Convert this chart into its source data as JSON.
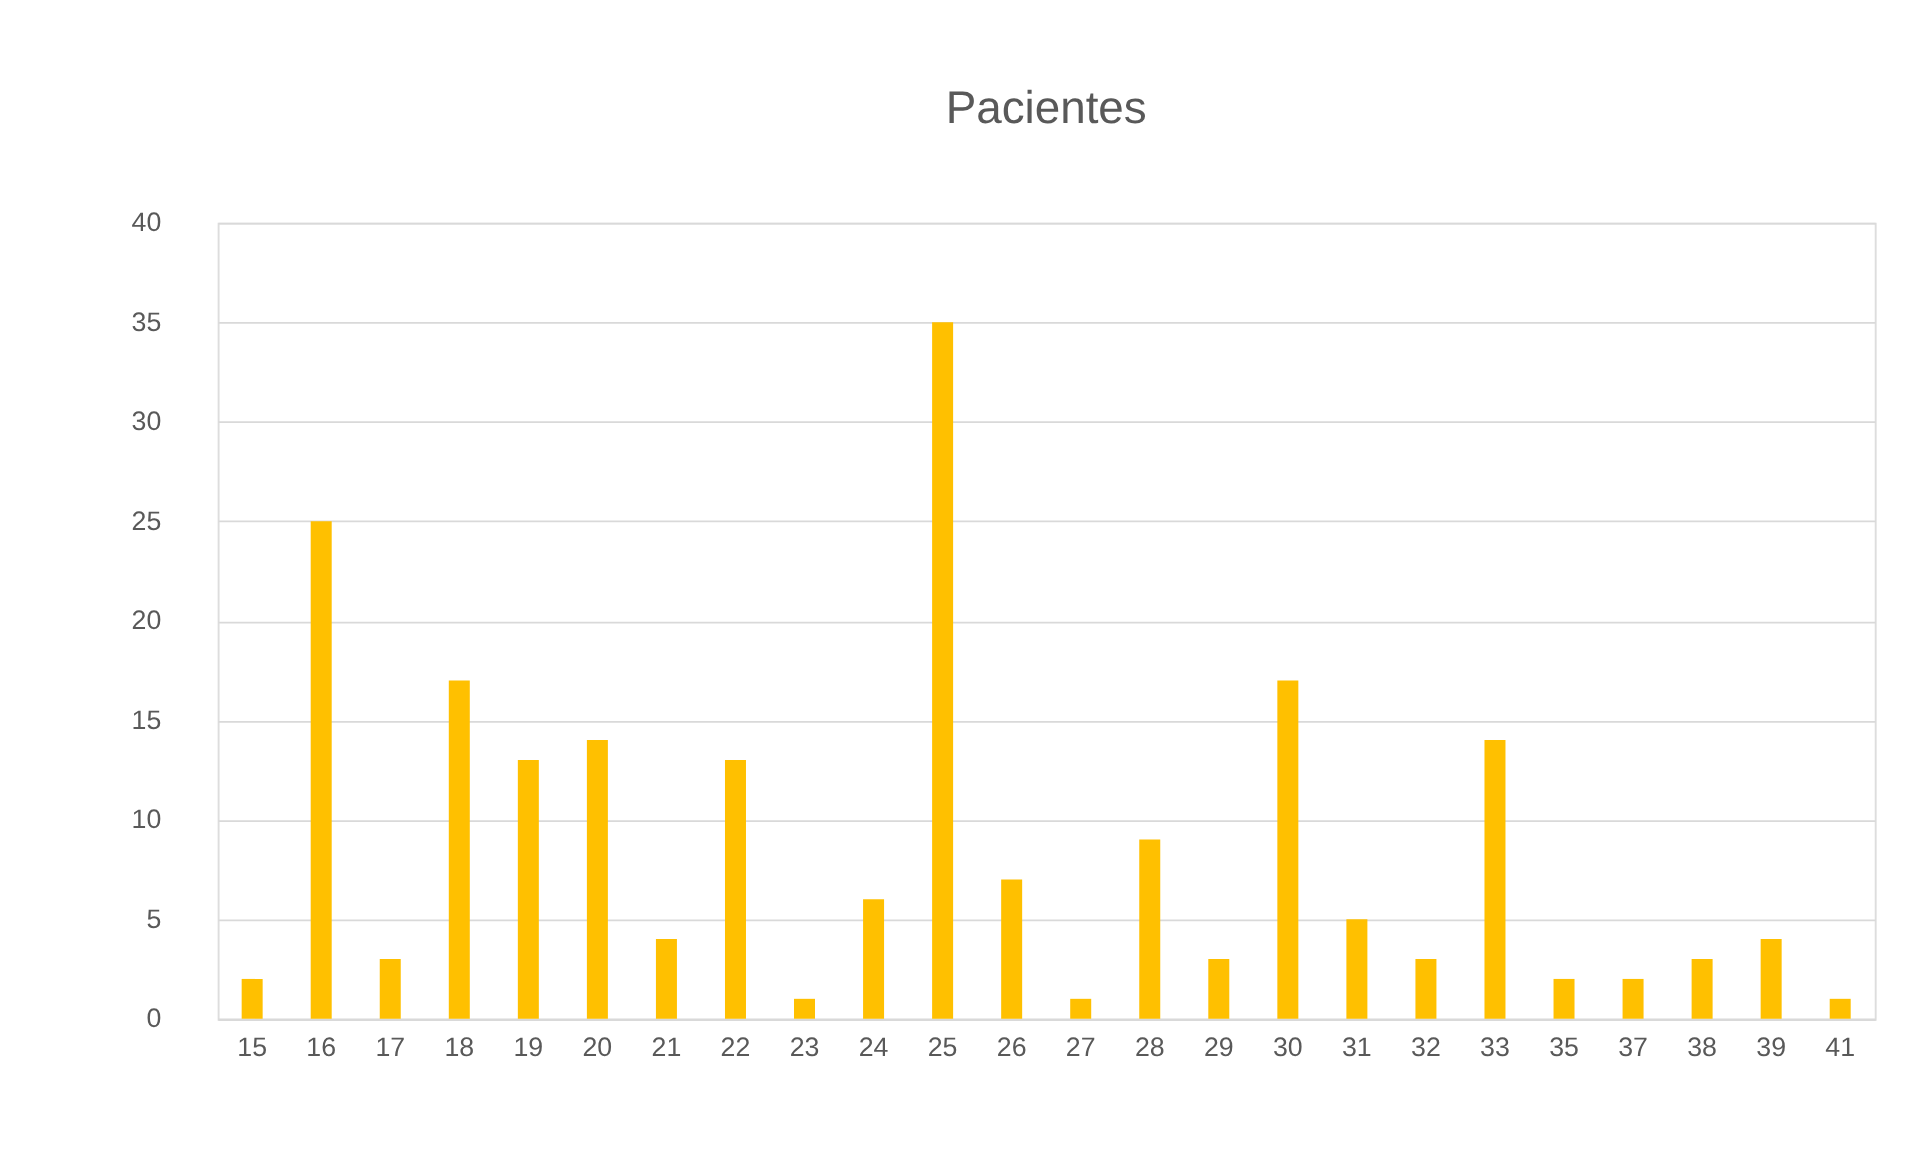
{
  "chart_data": {
    "type": "bar",
    "title": "Pacientes",
    "categories": [
      "15",
      "16",
      "17",
      "18",
      "19",
      "20",
      "21",
      "22",
      "23",
      "24",
      "25",
      "26",
      "27",
      "28",
      "29",
      "30",
      "31",
      "32",
      "33",
      "35",
      "37",
      "38",
      "39",
      "41"
    ],
    "values": [
      2,
      25,
      3,
      17,
      13,
      14,
      4,
      13,
      1,
      6,
      35,
      7,
      1,
      9,
      3,
      17,
      5,
      3,
      14,
      2,
      2,
      3,
      4,
      1
    ],
    "color": "#ffc000",
    "ylim": [
      0,
      40
    ],
    "yticks": [
      0,
      5,
      10,
      15,
      20,
      25,
      30,
      35,
      40
    ],
    "grid": "y"
  }
}
